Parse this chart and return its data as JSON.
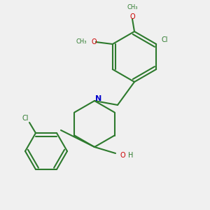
{
  "background_color": "#f0f0f0",
  "bond_color": "#2d7a2d",
  "atom_colors": {
    "N": "#0000cc",
    "O": "#cc0000",
    "Cl": "#2d7a2d",
    "C": "#2d7a2d",
    "H": "#2d7a2d"
  },
  "title": ""
}
